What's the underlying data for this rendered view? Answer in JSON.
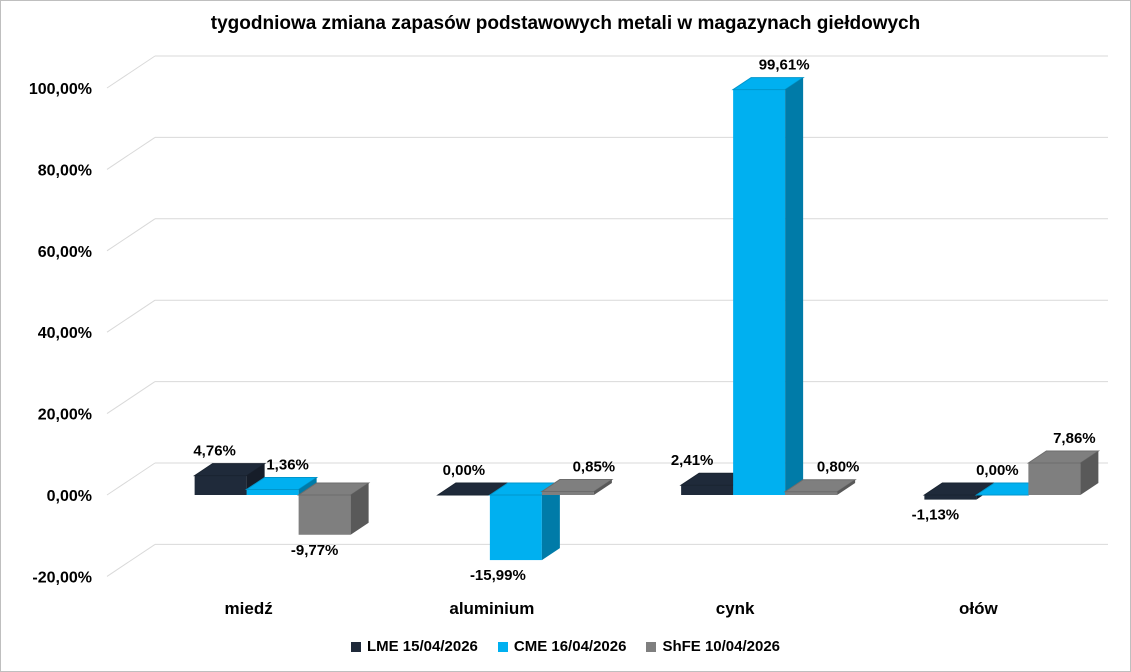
{
  "chart_data": {
    "type": "bar",
    "title": "tygodniowa zmiana zapasów podstawowych metali w magazynach giełdowych",
    "categories": [
      "miedź",
      "aluminium",
      "cynk",
      "ołów"
    ],
    "series": [
      {
        "name": "LME 15/04/2026",
        "values": [
          4.76,
          0.0,
          2.41,
          -1.13
        ],
        "labels": [
          "4,76%",
          "0,00%",
          "2,41%",
          "-1,13%"
        ],
        "color": "#1f2a3a"
      },
      {
        "name": "CME 16/04/2026",
        "values": [
          1.36,
          -15.99,
          99.61,
          0.0
        ],
        "labels": [
          "1,36%",
          "-15,99%",
          "99,61%",
          "0,00%"
        ],
        "color": "#00b0f0"
      },
      {
        "name": "ShFE 10/04/2026",
        "values": [
          -9.77,
          0.85,
          0.8,
          7.86
        ],
        "labels": [
          "-9,77%",
          "0,85%",
          "0,80%",
          "7,86%"
        ],
        "color": "#7f7f7f"
      }
    ],
    "ylim": [
      -20,
      100
    ],
    "yticks": [
      -20,
      0,
      20,
      40,
      60,
      80,
      100
    ],
    "ytick_labels": [
      "-20,00%",
      "0,00%",
      "20,00%",
      "40,00%",
      "60,00%",
      "80,00%",
      "100,00%"
    ],
    "xlabel": "",
    "ylabel": "",
    "grid": true,
    "legend": "bottom"
  }
}
